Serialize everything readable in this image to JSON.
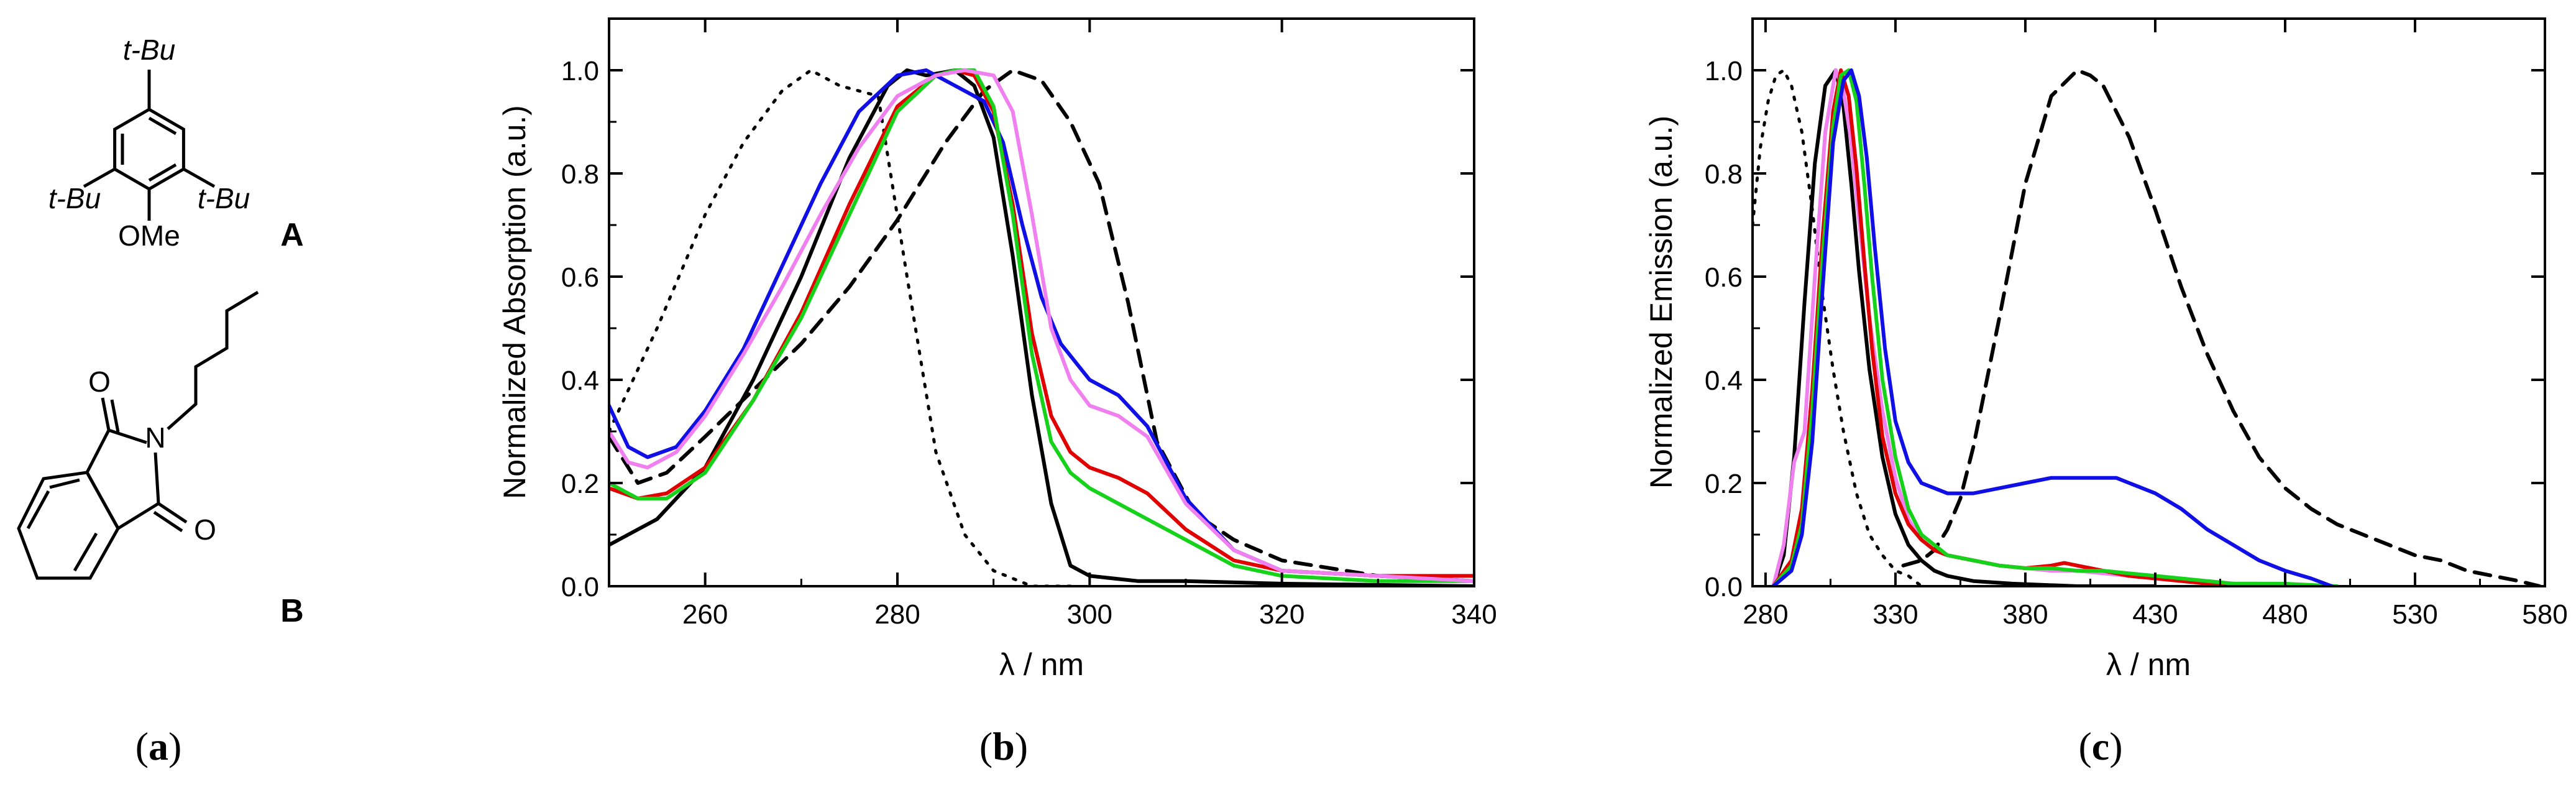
{
  "figure": {
    "panel_labels": [
      {
        "open": "(",
        "letter": "a",
        "close": ")"
      },
      {
        "open": "(",
        "letter": "b",
        "close": ")"
      },
      {
        "open": "(",
        "letter": "c",
        "close": ")"
      }
    ],
    "structures": {
      "A": {
        "label": "A",
        "substituents": [
          "t-Bu",
          "t-Bu",
          "t-Bu",
          "OMe"
        ]
      },
      "B": {
        "label": "B",
        "substituents": [
          "N",
          "O",
          "O"
        ]
      }
    },
    "colors": {
      "black": "#000000",
      "blue": "#1010e6",
      "red": "#e00000",
      "green": "#16d21a",
      "violet": "#f080f0"
    }
  },
  "chart_data": [
    {
      "type": "line",
      "title": "",
      "xlabel": "λ / nm",
      "ylabel": "Normalized Absorption (a.u.)",
      "xlim": [
        250,
        340
      ],
      "ylim": [
        0,
        1.1
      ],
      "xticks": [
        260,
        280,
        300,
        320,
        340
      ],
      "yticks": [
        0.0,
        0.2,
        0.4,
        0.6,
        0.8,
        1.0
      ],
      "xtick_labels": [
        "260",
        "280",
        "300",
        "320",
        "340"
      ],
      "ytick_labels": [
        "0.0",
        "0.2",
        "0.4",
        "0.6",
        "0.8",
        "1.0"
      ],
      "series": [
        {
          "name": "A (dotted)",
          "color": "#000000",
          "dash": "dotted",
          "x": [
            250,
            255,
            260,
            264,
            268,
            271,
            274,
            278,
            281,
            284,
            287,
            290,
            294,
            298
          ],
          "y": [
            0.3,
            0.5,
            0.72,
            0.86,
            0.96,
            1.0,
            0.97,
            0.95,
            0.6,
            0.26,
            0.1,
            0.03,
            0.0,
            0.0
          ]
        },
        {
          "name": "B (dashed)",
          "color": "#000000",
          "dash": "dashed",
          "x": [
            250,
            253,
            256,
            260,
            265,
            270,
            275,
            280,
            285,
            289,
            292,
            295,
            298,
            301,
            304,
            307,
            311,
            315,
            320,
            330,
            340
          ],
          "y": [
            0.29,
            0.2,
            0.22,
            0.29,
            0.38,
            0.47,
            0.58,
            0.71,
            0.86,
            0.96,
            1.0,
            0.98,
            0.9,
            0.78,
            0.55,
            0.28,
            0.14,
            0.09,
            0.05,
            0.02,
            0.01
          ]
        },
        {
          "name": "black",
          "color": "#000000",
          "dash": "solid",
          "x": [
            250,
            255,
            260,
            265,
            270,
            275,
            279,
            281,
            283,
            286,
            288,
            290,
            292,
            294,
            296,
            298,
            300,
            305,
            310,
            320,
            340
          ],
          "y": [
            0.08,
            0.13,
            0.23,
            0.4,
            0.6,
            0.83,
            0.97,
            1.0,
            0.99,
            1.0,
            0.97,
            0.87,
            0.64,
            0.37,
            0.16,
            0.04,
            0.02,
            0.01,
            0.01,
            0.005,
            0.0
          ]
        },
        {
          "name": "blue",
          "color": "#1010e6",
          "dash": "solid",
          "x": [
            250,
            252,
            254,
            257,
            260,
            264,
            268,
            272,
            276,
            280,
            283,
            286,
            289,
            291,
            293,
            295,
            297,
            300,
            303,
            306,
            310,
            315,
            320,
            330,
            340
          ],
          "y": [
            0.35,
            0.27,
            0.25,
            0.27,
            0.34,
            0.46,
            0.62,
            0.78,
            0.92,
            0.99,
            1.0,
            0.97,
            0.94,
            0.86,
            0.7,
            0.56,
            0.47,
            0.4,
            0.37,
            0.31,
            0.17,
            0.07,
            0.03,
            0.02,
            0.01
          ]
        },
        {
          "name": "red",
          "color": "#e00000",
          "dash": "solid",
          "x": [
            250,
            253,
            256,
            260,
            265,
            270,
            275,
            280,
            284,
            286,
            288,
            290,
            292,
            294,
            296,
            298,
            300,
            303,
            306,
            310,
            315,
            320,
            330,
            340
          ],
          "y": [
            0.19,
            0.17,
            0.18,
            0.23,
            0.36,
            0.53,
            0.74,
            0.93,
            0.99,
            1.0,
            0.99,
            0.92,
            0.74,
            0.49,
            0.33,
            0.26,
            0.23,
            0.21,
            0.18,
            0.11,
            0.05,
            0.03,
            0.02,
            0.02
          ]
        },
        {
          "name": "green",
          "color": "#16d21a",
          "dash": "solid",
          "x": [
            250,
            253,
            256,
            260,
            265,
            270,
            275,
            280,
            284,
            286,
            288,
            290,
            292,
            294,
            296,
            298,
            300,
            303,
            306,
            310,
            315,
            320,
            330,
            340
          ],
          "y": [
            0.2,
            0.17,
            0.17,
            0.22,
            0.36,
            0.52,
            0.72,
            0.92,
            0.99,
            1.0,
            1.0,
            0.93,
            0.72,
            0.45,
            0.28,
            0.22,
            0.19,
            0.16,
            0.13,
            0.09,
            0.04,
            0.02,
            0.01,
            0.01
          ]
        },
        {
          "name": "violet",
          "color": "#f080f0",
          "dash": "solid",
          "x": [
            250,
            252,
            254,
            257,
            260,
            264,
            268,
            272,
            276,
            280,
            284,
            287,
            290,
            292,
            294,
            296,
            298,
            300,
            303,
            306,
            310,
            315,
            320,
            330,
            340
          ],
          "y": [
            0.3,
            0.24,
            0.23,
            0.26,
            0.33,
            0.45,
            0.58,
            0.72,
            0.85,
            0.95,
            0.99,
            1.0,
            0.99,
            0.92,
            0.72,
            0.5,
            0.4,
            0.35,
            0.33,
            0.29,
            0.16,
            0.07,
            0.03,
            0.02,
            0.01
          ]
        }
      ]
    },
    {
      "type": "line",
      "title": "",
      "xlabel": "λ / nm",
      "ylabel": "Normalized Emission (a.u.)",
      "xlim": [
        275,
        580
      ],
      "ylim": [
        0,
        1.1
      ],
      "xticks": [
        280,
        330,
        380,
        430,
        480,
        530,
        580
      ],
      "yticks": [
        0.0,
        0.2,
        0.4,
        0.6,
        0.8,
        1.0
      ],
      "xtick_labels": [
        "280",
        "330",
        "380",
        "430",
        "480",
        "530",
        "580"
      ],
      "ytick_labels": [
        "0.0",
        "0.2",
        "0.4",
        "0.6",
        "0.8",
        "1.0"
      ],
      "series": [
        {
          "name": "A (dotted)",
          "color": "#000000",
          "dash": "dotted",
          "x": [
            275,
            278,
            281,
            284,
            287,
            290,
            294,
            298,
            302,
            306,
            310,
            315,
            320,
            325,
            330,
            335,
            340
          ],
          "y": [
            0.7,
            0.85,
            0.94,
            0.99,
            1.0,
            0.97,
            0.88,
            0.73,
            0.56,
            0.42,
            0.3,
            0.18,
            0.1,
            0.06,
            0.03,
            0.02,
            0.0
          ]
        },
        {
          "name": "B (dashed)",
          "color": "#000000",
          "dash": "dashed",
          "x": [
            333,
            340,
            345,
            350,
            355,
            360,
            370,
            380,
            390,
            400,
            405,
            410,
            420,
            430,
            440,
            450,
            460,
            470,
            480,
            490,
            500,
            510,
            520,
            530,
            540,
            550,
            560,
            570,
            578
          ],
          "y": [
            0.04,
            0.05,
            0.07,
            0.11,
            0.17,
            0.27,
            0.52,
            0.78,
            0.95,
            1.0,
            0.99,
            0.97,
            0.87,
            0.73,
            0.58,
            0.45,
            0.34,
            0.25,
            0.19,
            0.15,
            0.12,
            0.1,
            0.08,
            0.06,
            0.05,
            0.03,
            0.02,
            0.01,
            0.0
          ]
        },
        {
          "name": "black",
          "color": "#000000",
          "dash": "solid",
          "x": [
            283,
            287,
            291,
            295,
            299,
            303,
            307,
            310,
            313,
            316,
            320,
            325,
            330,
            335,
            340,
            345,
            350,
            360,
            375,
            400,
            430
          ],
          "y": [
            0.0,
            0.06,
            0.25,
            0.55,
            0.82,
            0.97,
            1.0,
            0.93,
            0.78,
            0.61,
            0.42,
            0.25,
            0.14,
            0.08,
            0.05,
            0.03,
            0.02,
            0.01,
            0.005,
            0.0,
            0.0
          ]
        },
        {
          "name": "violet",
          "color": "#f080f0",
          "dash": "solid",
          "x": [
            283,
            287,
            291,
            295,
            299,
            303,
            307,
            310,
            313,
            316,
            320,
            325,
            330,
            335,
            340,
            345,
            350,
            360,
            370,
            380,
            390,
            400,
            410,
            420,
            430,
            440,
            450,
            460,
            470,
            480
          ],
          "y": [
            0.0,
            0.08,
            0.24,
            0.3,
            0.6,
            0.88,
            1.0,
            0.96,
            0.86,
            0.71,
            0.52,
            0.34,
            0.21,
            0.13,
            0.09,
            0.07,
            0.06,
            0.05,
            0.04,
            0.035,
            0.03,
            0.03,
            0.025,
            0.02,
            0.015,
            0.01,
            0.01,
            0.005,
            0.005,
            0.0
          ]
        },
        {
          "name": "red",
          "color": "#e00000",
          "dash": "solid",
          "x": [
            283,
            290,
            294,
            298,
            302,
            306,
            309,
            312,
            315,
            318,
            321,
            325,
            330,
            335,
            340,
            345,
            350,
            360,
            370,
            380,
            390,
            395,
            400,
            405,
            410,
            420,
            430,
            440,
            450,
            460,
            480
          ],
          "y": [
            0.0,
            0.05,
            0.15,
            0.38,
            0.68,
            0.92,
            1.0,
            0.95,
            0.81,
            0.63,
            0.46,
            0.29,
            0.18,
            0.12,
            0.09,
            0.07,
            0.06,
            0.05,
            0.04,
            0.035,
            0.04,
            0.045,
            0.04,
            0.035,
            0.03,
            0.02,
            0.015,
            0.01,
            0.005,
            0.005,
            0.0
          ]
        },
        {
          "name": "green",
          "color": "#16d21a",
          "dash": "solid",
          "x": [
            283,
            290,
            294,
            298,
            302,
            306,
            309,
            312,
            315,
            318,
            321,
            325,
            330,
            335,
            340,
            345,
            350,
            360,
            370,
            380,
            390,
            400,
            410,
            420,
            430,
            440,
            450,
            460,
            480,
            500
          ],
          "y": [
            0.0,
            0.04,
            0.12,
            0.34,
            0.64,
            0.89,
            0.99,
            1.0,
            0.94,
            0.78,
            0.6,
            0.4,
            0.25,
            0.15,
            0.1,
            0.08,
            0.06,
            0.05,
            0.04,
            0.035,
            0.035,
            0.03,
            0.03,
            0.025,
            0.02,
            0.015,
            0.01,
            0.005,
            0.005,
            0.0
          ]
        },
        {
          "name": "blue",
          "color": "#1010e6",
          "dash": "solid",
          "x": [
            283,
            290,
            294,
            298,
            302,
            306,
            310,
            313,
            316,
            319,
            322,
            326,
            330,
            335,
            340,
            345,
            350,
            360,
            370,
            380,
            390,
            400,
            410,
            415,
            420,
            430,
            440,
            450,
            460,
            470,
            480,
            490,
            498
          ],
          "y": [
            0.0,
            0.03,
            0.1,
            0.28,
            0.58,
            0.86,
            0.98,
            1.0,
            0.95,
            0.83,
            0.66,
            0.46,
            0.32,
            0.24,
            0.2,
            0.19,
            0.18,
            0.18,
            0.19,
            0.2,
            0.21,
            0.21,
            0.21,
            0.21,
            0.2,
            0.18,
            0.15,
            0.11,
            0.08,
            0.05,
            0.03,
            0.015,
            0.0
          ]
        }
      ]
    }
  ]
}
